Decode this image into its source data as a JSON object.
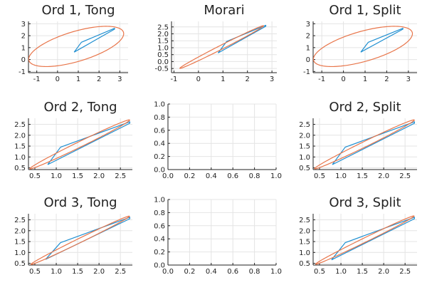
{
  "colors": {
    "polygon": "#1f8fd1",
    "ellipse": "#e8754a",
    "axis": "#222222",
    "grid": "#e4e4e4"
  },
  "chart_data": [
    {
      "id": "p1",
      "type": "line",
      "title": "Ord 1, Tong",
      "xlim": [
        -1.4,
        3.4
      ],
      "ylim": [
        -1.1,
        3.2
      ],
      "xticks": [
        -1,
        0,
        1,
        2,
        3
      ],
      "yticks": [
        -1,
        0,
        1,
        2,
        3
      ],
      "series": [
        {
          "kind": "polygon",
          "color": "#1f8fd1",
          "x": [
            0.8,
            1.15,
            2.75,
            2.75,
            0.8
          ],
          "y": [
            0.62,
            1.45,
            2.62,
            2.55,
            0.62
          ]
        },
        {
          "kind": "ellipse",
          "color": "#e8754a",
          "cx": 0.9,
          "cy": 1.1,
          "a": 2.6,
          "b": 1.15,
          "angle_deg": 32
        }
      ]
    },
    {
      "id": "p2",
      "type": "line",
      "title": "Morari",
      "xlim": [
        -1.1,
        3.2
      ],
      "ylim": [
        -0.8,
        2.9
      ],
      "xticks": [
        -1,
        0,
        1,
        2,
        3
      ],
      "yticks": [
        -0.5,
        0.0,
        0.5,
        1.0,
        1.5,
        2.0,
        2.5
      ],
      "series": [
        {
          "kind": "polygon",
          "color": "#1f8fd1",
          "x": [
            0.8,
            1.15,
            2.75,
            2.75,
            0.8
          ],
          "y": [
            0.62,
            1.45,
            2.62,
            2.55,
            0.62
          ]
        },
        {
          "kind": "ellipse",
          "color": "#e8754a",
          "cx": 0.95,
          "cy": 1.05,
          "a": 2.3,
          "b": 0.12,
          "angle_deg": 42
        }
      ]
    },
    {
      "id": "p3",
      "type": "line",
      "title": "Ord 1, Split",
      "xlim": [
        -1.4,
        3.4
      ],
      "ylim": [
        -1.1,
        3.2
      ],
      "xticks": [
        -1,
        0,
        1,
        2,
        3
      ],
      "yticks": [
        -1,
        0,
        1,
        2,
        3
      ],
      "series": [
        {
          "kind": "polygon",
          "color": "#1f8fd1",
          "x": [
            0.8,
            1.15,
            2.75,
            2.75,
            0.8
          ],
          "y": [
            0.62,
            1.45,
            2.62,
            2.55,
            0.62
          ]
        },
        {
          "kind": "ellipse",
          "color": "#e8754a",
          "cx": 0.9,
          "cy": 1.1,
          "a": 2.6,
          "b": 1.15,
          "angle_deg": 32
        }
      ]
    },
    {
      "id": "p4",
      "type": "line",
      "title": "Ord 2, Tong",
      "xlim": [
        0.35,
        2.78
      ],
      "ylim": [
        0.42,
        2.78
      ],
      "xticks": [
        0.5,
        1.0,
        1.5,
        2.0,
        2.5
      ],
      "yticks": [
        0.5,
        1.0,
        1.5,
        2.0,
        2.5
      ],
      "series": [
        {
          "kind": "polygon",
          "color": "#1f8fd1",
          "x": [
            0.8,
            1.1,
            2.72,
            2.72,
            0.8
          ],
          "y": [
            0.65,
            1.45,
            2.62,
            2.55,
            0.65
          ]
        },
        {
          "kind": "ellipse",
          "color": "#e8754a",
          "cx": 1.55,
          "cy": 1.58,
          "a": 1.62,
          "b": 0.1,
          "angle_deg": 44
        }
      ]
    },
    {
      "id": "p5",
      "type": "line",
      "title": "",
      "xlim": [
        0,
        1
      ],
      "ylim": [
        0,
        1
      ],
      "xticks": [
        0.0,
        0.2,
        0.4,
        0.6,
        0.8,
        1.0
      ],
      "yticks": [
        0.0,
        0.2,
        0.4,
        0.6,
        0.8,
        1.0
      ],
      "series": []
    },
    {
      "id": "p6",
      "type": "line",
      "title": "Ord 2, Split",
      "xlim": [
        0.35,
        2.78
      ],
      "ylim": [
        0.42,
        2.78
      ],
      "xticks": [
        0.5,
        1.0,
        1.5,
        2.0,
        2.5
      ],
      "yticks": [
        0.5,
        1.0,
        1.5,
        2.0,
        2.5
      ],
      "series": [
        {
          "kind": "polygon",
          "color": "#1f8fd1",
          "x": [
            0.8,
            1.1,
            2.72,
            2.72,
            0.8
          ],
          "y": [
            0.65,
            1.45,
            2.62,
            2.55,
            0.65
          ]
        },
        {
          "kind": "ellipse",
          "color": "#e8754a",
          "cx": 1.55,
          "cy": 1.58,
          "a": 1.62,
          "b": 0.1,
          "angle_deg": 44
        }
      ]
    },
    {
      "id": "p7",
      "type": "line",
      "title": "Ord 3, Tong",
      "xlim": [
        0.35,
        2.78
      ],
      "ylim": [
        0.42,
        2.78
      ],
      "xticks": [
        0.5,
        1.0,
        1.5,
        2.0,
        2.5
      ],
      "yticks": [
        0.5,
        1.0,
        1.5,
        2.0,
        2.5
      ],
      "series": [
        {
          "kind": "polygon",
          "color": "#1f8fd1",
          "x": [
            0.75,
            1.1,
            2.72,
            2.72,
            0.75
          ],
          "y": [
            0.68,
            1.45,
            2.62,
            2.55,
            0.68
          ]
        },
        {
          "kind": "ellipse",
          "color": "#e8754a",
          "cx": 1.56,
          "cy": 1.56,
          "a": 1.6,
          "b": 0.08,
          "angle_deg": 44
        }
      ]
    },
    {
      "id": "p8",
      "type": "line",
      "title": "",
      "xlim": [
        0,
        1
      ],
      "ylim": [
        0,
        1
      ],
      "xticks": [
        0.0,
        0.2,
        0.4,
        0.6,
        0.8,
        1.0
      ],
      "yticks": [
        0.0,
        0.2,
        0.4,
        0.6,
        0.8,
        1.0
      ],
      "series": []
    },
    {
      "id": "p9",
      "type": "line",
      "title": "Ord 3, Split",
      "xlim": [
        0.35,
        2.78
      ],
      "ylim": [
        0.42,
        2.78
      ],
      "xticks": [
        0.5,
        1.0,
        1.5,
        2.0,
        2.5
      ],
      "yticks": [
        0.5,
        1.0,
        1.5,
        2.0,
        2.5
      ],
      "series": [
        {
          "kind": "polygon",
          "color": "#1f8fd1",
          "x": [
            0.78,
            1.1,
            2.72,
            2.72,
            0.78
          ],
          "y": [
            0.66,
            1.45,
            2.62,
            2.55,
            0.66
          ]
        },
        {
          "kind": "ellipse",
          "color": "#e8754a",
          "cx": 1.56,
          "cy": 1.57,
          "a": 1.6,
          "b": 0.08,
          "angle_deg": 44
        }
      ]
    }
  ]
}
